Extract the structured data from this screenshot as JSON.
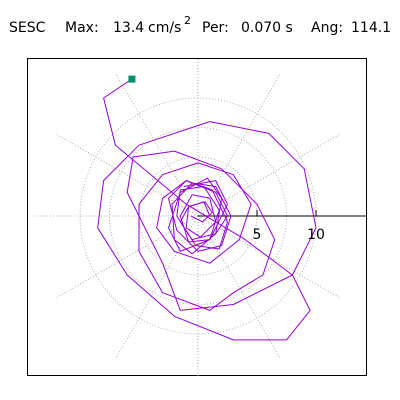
{
  "header": {
    "station": "SESC",
    "max_label": "Max:",
    "max_value": "13.4",
    "max_unit": "cm/s",
    "max_exp": "2",
    "per_label": "Per:",
    "per_value": "0.070 s",
    "ang_label": "Ang:",
    "ang_value": "114.1"
  },
  "chart_data": {
    "type": "line",
    "plot": "particle-motion / acceleration hodogram (polar)",
    "axis_ticks": [
      {
        "value": 5,
        "label": "5"
      },
      {
        "value": 10,
        "label": "10"
      }
    ],
    "rings": [
      2.5,
      5,
      7.5,
      10
    ],
    "range_radius": 14,
    "grid": true,
    "trace_color": "#9400d3",
    "start_marker_color": "#008f6b",
    "start_point": {
      "x": -5.6,
      "y": 11.6
    },
    "series": [
      {
        "x": [
          -5.6,
          -8.0,
          -7.0,
          -1.0,
          4.0,
          8.0,
          9.5,
          7.5,
          3.0,
          -2.0,
          -6.0,
          -8.5,
          -8.0,
          -5.0,
          1.0,
          6.0,
          9.0,
          10.0,
          8.0,
          3.0,
          -1.5,
          -3.0,
          -6.0,
          -5.5,
          -2.0,
          2.0,
          5.0,
          6.5,
          5.5,
          3.0,
          1.0,
          -3.0,
          -5.0,
          -5.0,
          -3.0,
          0.0,
          3.0,
          4.5,
          3.5,
          1.0,
          -2.0,
          -3.5,
          -3.0,
          -1.0,
          1.5,
          2.5,
          1.5,
          -0.5,
          -1.5,
          -0.8,
          0.6,
          1.2,
          0.4,
          -0.6
        ],
        "y": [
          11.6,
          10.0,
          6.0,
          1.0,
          -2.0,
          -5.0,
          -8.0,
          -10.5,
          -10.5,
          -8.5,
          -5.0,
          -1.0,
          3.0,
          6.0,
          8.0,
          7.0,
          4.0,
          -1.0,
          -5.0,
          -7.5,
          -8.0,
          -4.0,
          2.0,
          5.0,
          5.5,
          4.0,
          1.0,
          -2.0,
          -5.0,
          -6.5,
          -8.0,
          -6.5,
          -3.0,
          1.0,
          3.5,
          4.5,
          3.5,
          1.0,
          -2.0,
          -4.0,
          -3.0,
          -1.0,
          1.5,
          3.0,
          2.0,
          0.0,
          -1.5,
          -2.0,
          -0.5,
          0.8,
          1.2,
          0.3,
          -0.5,
          0.0
        ]
      },
      {
        "x": [
          -1.2,
          1.5,
          2.5,
          1.0,
          -1.5,
          -2.5,
          -1.5,
          0.8,
          2.0,
          1.5,
          -0.5,
          -2.0,
          -2.2,
          -0.5,
          1.5,
          2.8,
          2.0,
          0.0,
          -1.8,
          -2.5,
          -1.0,
          1.2,
          2.5,
          1.8,
          -0.2,
          -1.8,
          -1.5,
          0.5,
          1.8,
          1.0,
          -0.8,
          -1.5,
          -0.5,
          1.0,
          1.5,
          0.2,
          -1.0,
          -0.8,
          0.5,
          1.0
        ],
        "y": [
          2.5,
          3.0,
          1.0,
          -2.0,
          -3.0,
          -1.0,
          2.0,
          3.2,
          1.5,
          -1.5,
          -3.2,
          -2.0,
          1.0,
          2.8,
          2.5,
          0.0,
          -2.5,
          -3.0,
          -1.2,
          1.5,
          3.0,
          2.2,
          -0.5,
          -2.8,
          -2.5,
          0.0,
          2.2,
          2.5,
          0.5,
          -2.0,
          -2.2,
          0.0,
          1.8,
          1.5,
          -0.5,
          -1.8,
          -1.0,
          0.8,
          1.2,
          0.0
        ]
      }
    ]
  }
}
